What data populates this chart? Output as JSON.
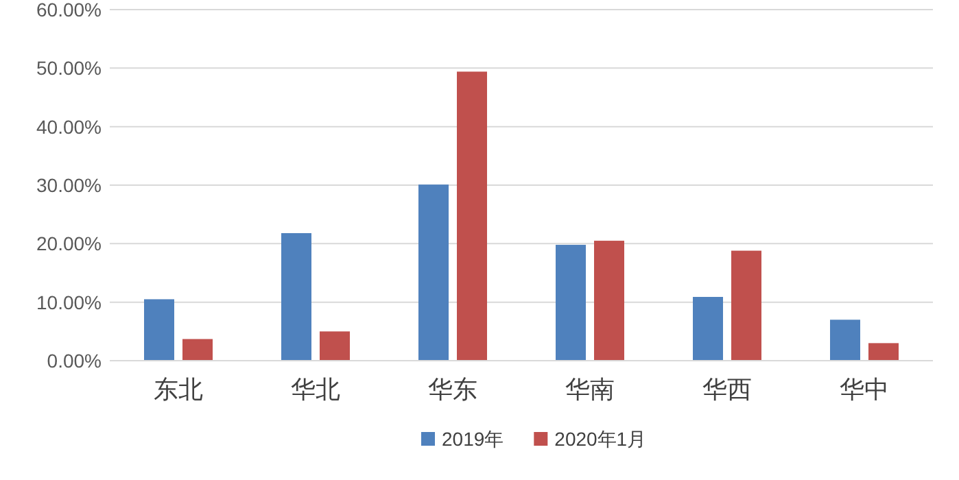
{
  "chart_data": {
    "type": "bar",
    "categories": [
      "东北",
      "华北",
      "华东",
      "华南",
      "华西",
      "华中"
    ],
    "series": [
      {
        "name": "2019年",
        "color": "#4f81bd",
        "values": [
          10.5,
          21.8,
          30.1,
          19.8,
          10.9,
          7.0
        ]
      },
      {
        "name": "2020年1月",
        "color": "#c0504d",
        "values": [
          3.7,
          5.0,
          49.4,
          20.5,
          18.8,
          3.0
        ]
      }
    ],
    "ylim": [
      0,
      60
    ],
    "yticks": [
      {
        "value": 0,
        "label": "0.00%"
      },
      {
        "value": 10,
        "label": "10.00%"
      },
      {
        "value": 20,
        "label": "20.00%"
      },
      {
        "value": 30,
        "label": "30.00%"
      },
      {
        "value": 40,
        "label": "40.00%"
      },
      {
        "value": 50,
        "label": "50.00%"
      },
      {
        "value": 60,
        "label": "60.00%"
      }
    ],
    "grid": "y",
    "legend": "bottom"
  }
}
